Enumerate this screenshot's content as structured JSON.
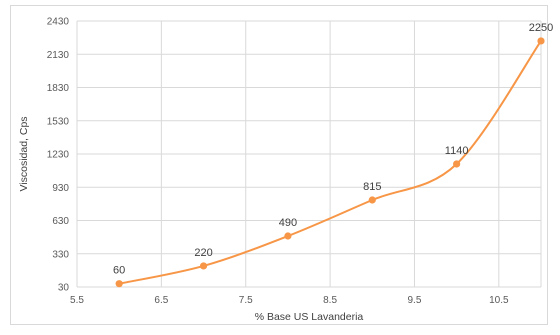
{
  "chart_data": {
    "type": "line",
    "title": "",
    "xlabel": "% Base US Lavanderia",
    "ylabel": "Viscosidad, Cps",
    "xlim": [
      5.5,
      11.0
    ],
    "ylim": [
      30,
      2430
    ],
    "x_ticks": [
      "5.5",
      "6.5",
      "7.5",
      "8.5",
      "9.5",
      "10.5"
    ],
    "y_ticks": [
      "30",
      "330",
      "630",
      "930",
      "1230",
      "1530",
      "1830",
      "2130",
      "2430"
    ],
    "grid": true,
    "legend": "none",
    "smooth": true,
    "color": "#f79646",
    "series": [
      {
        "x": [
          6,
          7,
          8,
          9,
          10,
          11
        ],
        "values": [
          60,
          220,
          490,
          815,
          1140,
          2250
        ],
        "labels": [
          "60",
          "220",
          "490",
          "815",
          "1140",
          "2250"
        ]
      }
    ]
  }
}
